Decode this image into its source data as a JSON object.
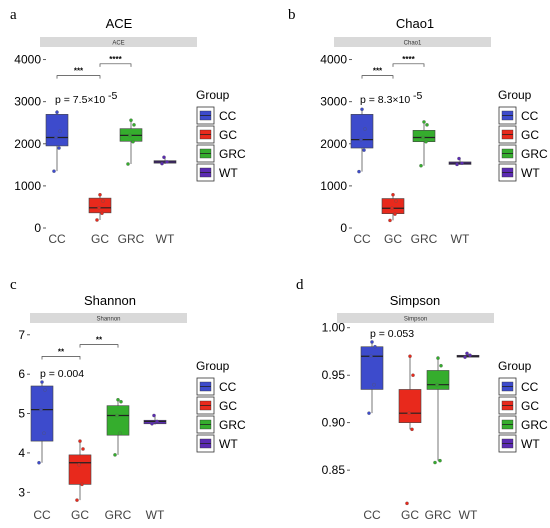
{
  "legend_title": "Group",
  "groups": [
    "CC",
    "GC",
    "GRC",
    "WT"
  ],
  "colors": {
    "CC": "#3d4bcc",
    "GC": "#e8291c",
    "GRC": "#35ad2d",
    "WT": "#5b2bb3"
  },
  "chart_data": [
    {
      "type": "box",
      "panel_label": "a",
      "title": "ACE",
      "strip": "ACE",
      "ylim": [
        0,
        4300
      ],
      "yticks": [
        0,
        1000,
        2000,
        3000,
        4000
      ],
      "yticklabels": [
        "0",
        "1000",
        "2000",
        "3000",
        "4000"
      ],
      "pvalue": "p = 7.5×10",
      "pvalue_exp": "-5",
      "brackets": [
        {
          "from": "CC",
          "to": "GC",
          "y": 3620,
          "label": "***"
        },
        {
          "from": "GC",
          "to": "GRC",
          "y": 3900,
          "label": "****"
        }
      ],
      "boxes": [
        {
          "group": "CC",
          "min": 1350,
          "q1": 1950,
          "median": 2150,
          "q3": 2700,
          "max": 2800,
          "points": [
            1350,
            1900,
            2150,
            2300,
            2750
          ]
        },
        {
          "group": "GC",
          "min": 190,
          "q1": 360,
          "median": 480,
          "q3": 710,
          "max": 800,
          "points": [
            190,
            350,
            480,
            640,
            790
          ]
        },
        {
          "group": "GRC",
          "min": 1520,
          "q1": 2060,
          "median": 2200,
          "q3": 2360,
          "max": 2560,
          "points": [
            1520,
            2050,
            2200,
            2450,
            2560
          ]
        },
        {
          "group": "WT",
          "min": 1520,
          "q1": 1540,
          "median": 1570,
          "q3": 1600,
          "max": 1680,
          "points": [
            1530,
            1570,
            1680
          ]
        }
      ]
    },
    {
      "type": "box",
      "panel_label": "b",
      "title": "Chao1",
      "strip": "Chao1",
      "ylim": [
        0,
        4300
      ],
      "yticks": [
        0,
        1000,
        2000,
        3000,
        4000
      ],
      "yticklabels": [
        "0",
        "1000",
        "2000",
        "3000",
        "4000"
      ],
      "pvalue": "p = 8.3×10",
      "pvalue_exp": "-5",
      "brackets": [
        {
          "from": "CC",
          "to": "GC",
          "y": 3620,
          "label": "***"
        },
        {
          "from": "GC",
          "to": "GRC",
          "y": 3900,
          "label": "****"
        }
      ],
      "boxes": [
        {
          "group": "CC",
          "min": 1340,
          "q1": 1900,
          "median": 2100,
          "q3": 2700,
          "max": 2850,
          "points": [
            1340,
            1850,
            2100,
            2350,
            2820
          ]
        },
        {
          "group": "GC",
          "min": 180,
          "q1": 340,
          "median": 470,
          "q3": 700,
          "max": 800,
          "points": [
            180,
            330,
            470,
            640,
            790
          ]
        },
        {
          "group": "GRC",
          "min": 1480,
          "q1": 2050,
          "median": 2150,
          "q3": 2320,
          "max": 2520,
          "points": [
            1480,
            2050,
            2150,
            2450,
            2520
          ]
        },
        {
          "group": "WT",
          "min": 1500,
          "q1": 1510,
          "median": 1540,
          "q3": 1570,
          "max": 1650,
          "points": [
            1510,
            1540,
            1650
          ]
        }
      ]
    },
    {
      "type": "box",
      "panel_label": "c",
      "title": "Shannon",
      "strip": "Shannon",
      "ylim": [
        2.55,
        7.3
      ],
      "yticks": [
        3,
        4,
        5,
        6,
        7
      ],
      "yticklabels": [
        "3",
        "4",
        "5",
        "6",
        "7"
      ],
      "pvalue": "p = 0.004",
      "pvalue_exp": "",
      "brackets": [
        {
          "from": "CC",
          "to": "GC",
          "y": 6.45,
          "label": "**"
        },
        {
          "from": "GC",
          "to": "GRC",
          "y": 6.75,
          "label": "**"
        }
      ],
      "boxes": [
        {
          "group": "CC",
          "min": 3.75,
          "q1": 4.3,
          "median": 5.1,
          "q3": 5.7,
          "max": 5.8,
          "points": [
            3.75,
            4.5,
            5.1,
            5.6,
            5.8
          ]
        },
        {
          "group": "GC",
          "min": 2.8,
          "q1": 3.2,
          "median": 3.75,
          "q3": 3.95,
          "max": 4.3,
          "points": [
            2.8,
            3.2,
            3.7,
            4.1,
            4.3
          ]
        },
        {
          "group": "GRC",
          "min": 3.95,
          "q1": 4.45,
          "median": 4.95,
          "q3": 5.2,
          "max": 5.35,
          "points": [
            3.95,
            4.5,
            4.95,
            5.3,
            5.35
          ]
        },
        {
          "group": "WT",
          "min": 4.72,
          "q1": 4.74,
          "median": 4.8,
          "q3": 4.83,
          "max": 4.95,
          "points": [
            4.74,
            4.8,
            4.95
          ]
        }
      ]
    },
    {
      "type": "box",
      "panel_label": "d",
      "title": "Simpson",
      "strip": "Simpson",
      "ylim": [
        0.808,
        1.005
      ],
      "yticks": [
        0.85,
        0.9,
        0.95,
        1.0
      ],
      "yticklabels": [
        "0.85",
        "0.90",
        "0.95",
        "1.00"
      ],
      "pvalue": "p = 0.053",
      "pvalue_exp": "",
      "brackets": [],
      "boxes": [
        {
          "group": "CC",
          "min": 0.91,
          "q1": 0.935,
          "median": 0.97,
          "q3": 0.98,
          "max": 0.985,
          "points": [
            0.91,
            0.94,
            0.97,
            0.98,
            0.985
          ]
        },
        {
          "group": "GC",
          "min": 0.893,
          "q1": 0.9,
          "median": 0.91,
          "q3": 0.935,
          "max": 0.971,
          "points": [
            0.815,
            0.893,
            0.91,
            0.95,
            0.97
          ]
        },
        {
          "group": "GRC",
          "min": 0.86,
          "q1": 0.935,
          "median": 0.94,
          "q3": 0.955,
          "max": 0.97,
          "points": [
            0.858,
            0.86,
            0.94,
            0.96,
            0.968
          ]
        },
        {
          "group": "WT",
          "min": 0.969,
          "q1": 0.969,
          "median": 0.97,
          "q3": 0.971,
          "max": 0.973,
          "points": [
            0.969,
            0.971,
            0.973
          ]
        }
      ]
    }
  ]
}
